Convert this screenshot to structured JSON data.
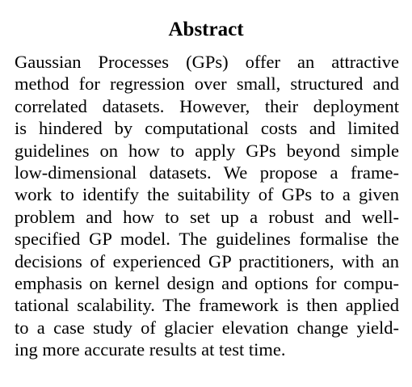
{
  "abstract": {
    "heading": "Abstract",
    "lines": [
      "Gaussian Processes (GPs) offer an attractive",
      "method for regression over small, structured and",
      "correlated datasets. However, their deployment",
      "is hindered by computational costs and limited",
      "guidelines on how to apply GPs beyond simple",
      "low-dimensional datasets. We propose a frame-",
      "work to identify the suitability of GPs to a given",
      "problem and how to set up a robust and well-",
      "specified GP model. The guidelines formalise the",
      "decisions of experienced GP practitioners, with an",
      "emphasis on kernel design and options for compu-",
      "tational scalability. The framework is then applied",
      "to a case study of glacier elevation change yield-",
      "ing more accurate results at test time."
    ]
  }
}
